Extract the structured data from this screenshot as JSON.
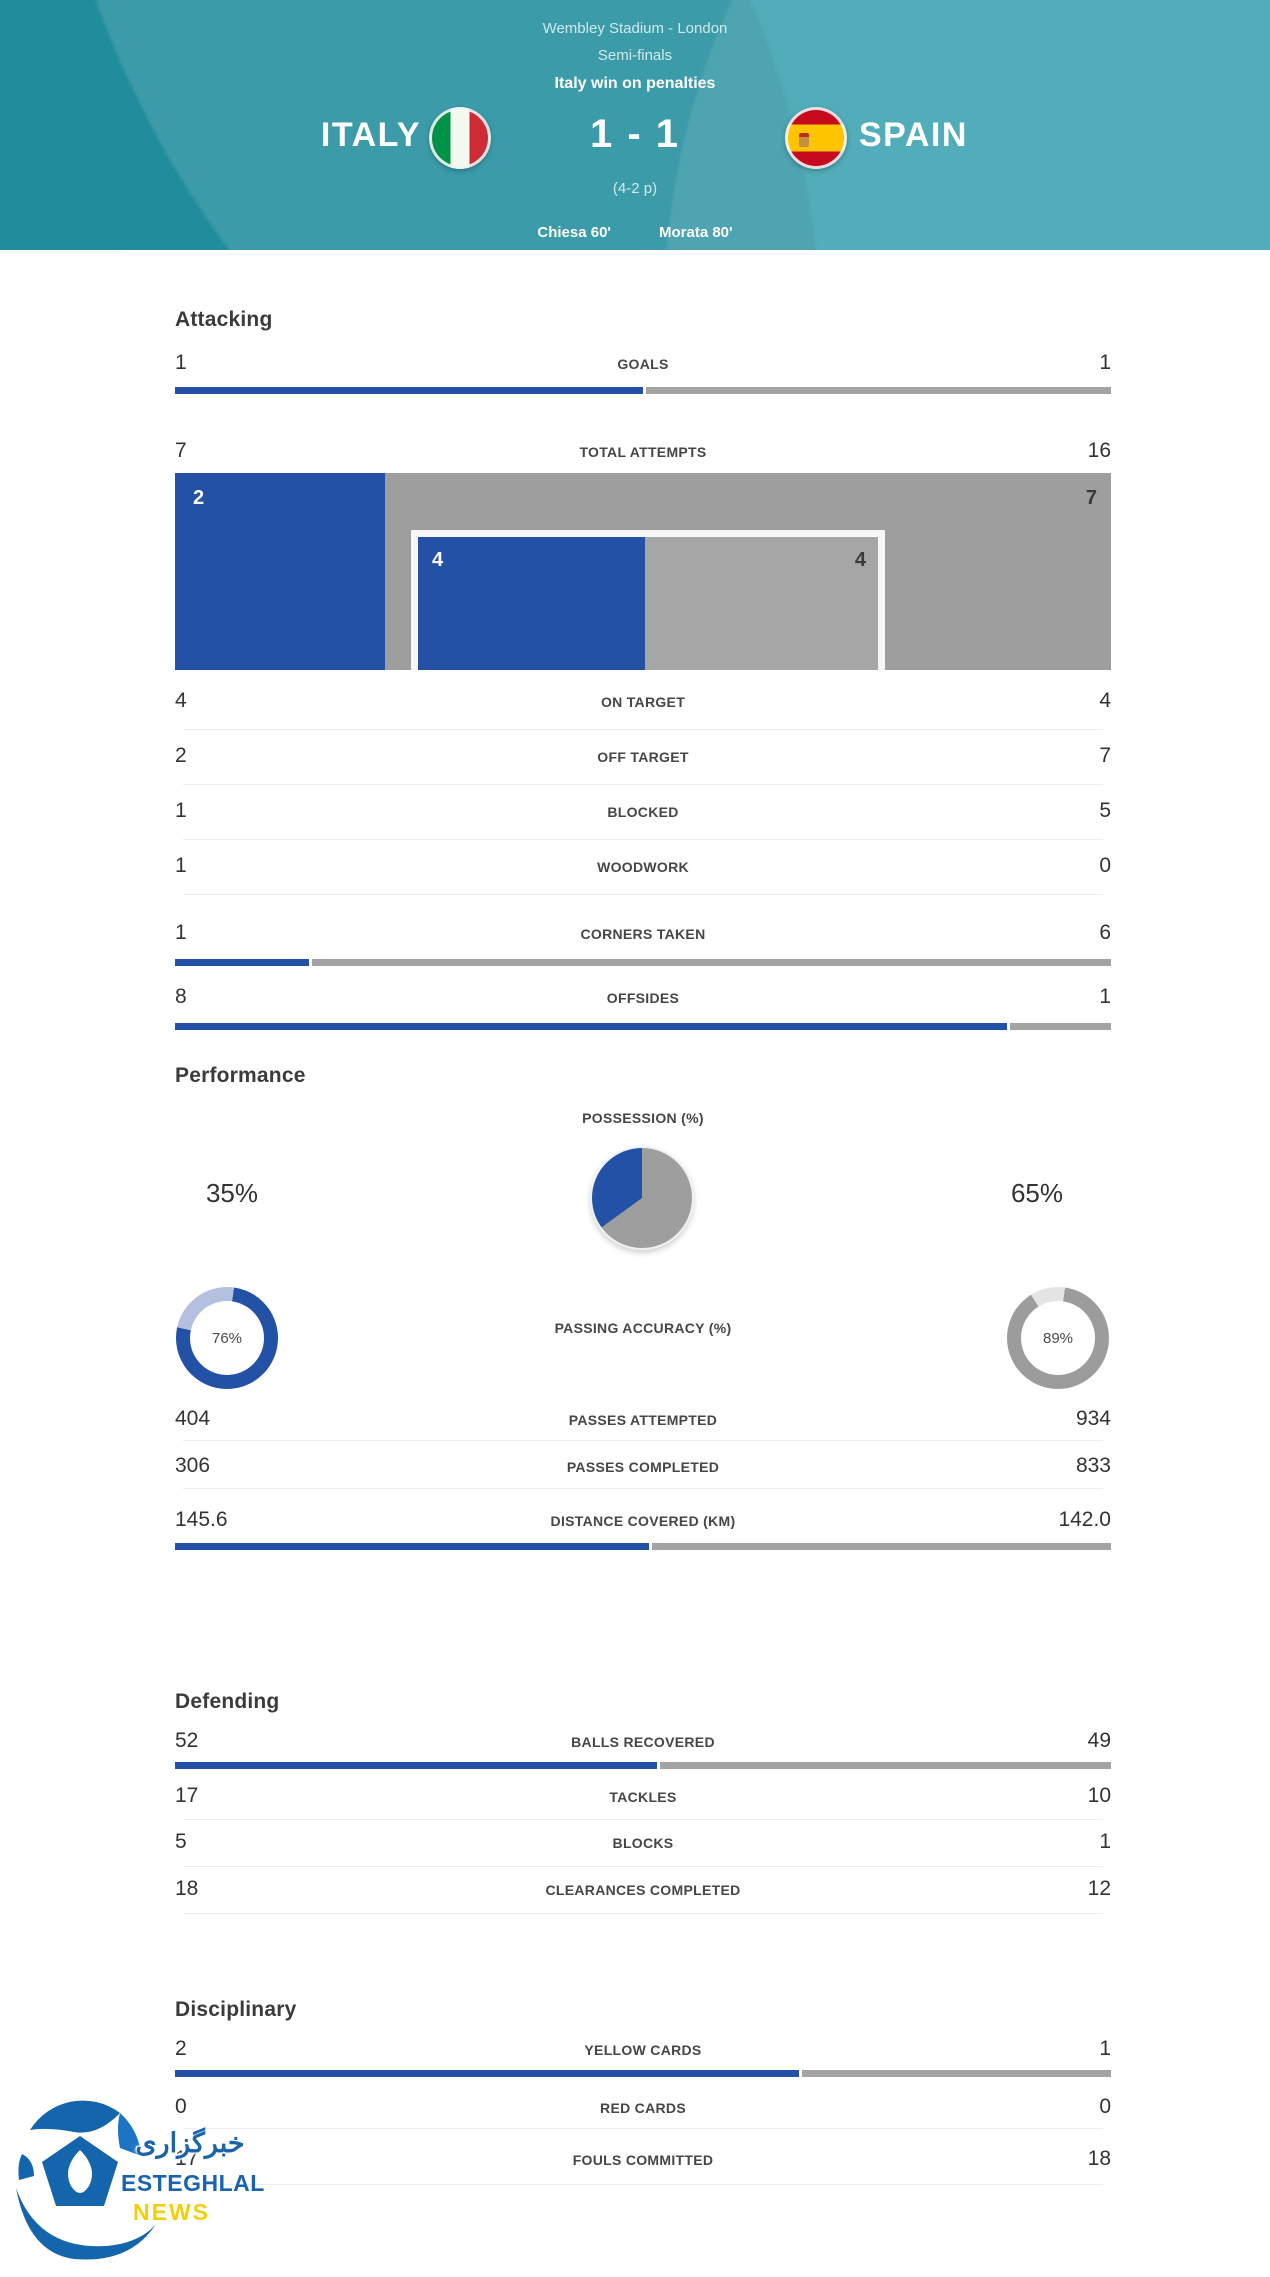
{
  "colors": {
    "home_blue": "#2351a5",
    "away_gray": "#9e9e9e",
    "header_teal": "#2398a7",
    "home_light": "#b3c0e0",
    "away_light": "#e4e4e4",
    "wm_blue": "#1c63ae",
    "wm_yellow": "#f3cf08"
  },
  "header": {
    "venue": "Wembley Stadium - London",
    "stage": "Semi-finals",
    "result_note": "Italy win on penalties",
    "home_team": "ITALY",
    "away_team": "SPAIN",
    "score": "1 - 1",
    "penalties": "(4-2 p)",
    "home_scorer": "Chiesa 60'",
    "away_scorer": "Morata 80'"
  },
  "attacking": {
    "title": "Attacking",
    "goals": {
      "label": "GOALS",
      "home": "1",
      "away": "1",
      "home_pct": 50
    },
    "attempts": {
      "label": "TOTAL ATTEMPTS",
      "home": "7",
      "away": "16",
      "outer_home": "2",
      "outer_away": "7",
      "inner_home": "4",
      "inner_away": "4",
      "outer_home_pct": 22.4,
      "inner_home_pct": 49.3
    },
    "on_target": {
      "label": "ON TARGET",
      "home": "4",
      "away": "4"
    },
    "off_target": {
      "label": "OFF TARGET",
      "home": "2",
      "away": "7"
    },
    "blocked": {
      "label": "BLOCKED",
      "home": "1",
      "away": "5"
    },
    "woodwork": {
      "label": "WOODWORK",
      "home": "1",
      "away": "0"
    },
    "corners": {
      "label": "CORNERS TAKEN",
      "home": "1",
      "away": "6",
      "home_pct": 14.3
    },
    "offsides": {
      "label": "OFFSIDES",
      "home": "8",
      "away": "1",
      "home_pct": 88.9
    }
  },
  "performance": {
    "title": "Performance",
    "possession": {
      "label": "POSSESSION (%)",
      "home": "35%",
      "away": "65%"
    },
    "passing": {
      "label": "PASSING ACCURACY (%)",
      "home": "76%",
      "away": "89%"
    },
    "passes_attempted": {
      "label": "PASSES ATTEMPTED",
      "home": "404",
      "away": "934"
    },
    "passes_completed": {
      "label": "PASSES COMPLETED",
      "home": "306",
      "away": "833"
    },
    "distance": {
      "label": "DISTANCE COVERED (KM)",
      "home": "145.6",
      "away": "142.0",
      "home_pct": 50.6
    }
  },
  "defending": {
    "title": "Defending",
    "balls_recovered": {
      "label": "BALLS RECOVERED",
      "home": "52",
      "away": "49",
      "home_pct": 51.5
    },
    "tackles": {
      "label": "TACKLES",
      "home": "17",
      "away": "10"
    },
    "blocks": {
      "label": "BLOCKS",
      "home": "5",
      "away": "1"
    },
    "clearances": {
      "label": "CLEARANCES COMPLETED",
      "home": "18",
      "away": "12"
    }
  },
  "disciplinary": {
    "title": "Disciplinary",
    "yellow_cards": {
      "label": "YELLOW CARDS",
      "home": "2",
      "away": "1",
      "home_pct": 66.7
    },
    "red_cards": {
      "label": "RED CARDS",
      "home": "0",
      "away": "0"
    },
    "fouls": {
      "label": "FOULS COMMITTED",
      "home": "17",
      "away": "18"
    }
  },
  "watermark": {
    "farsi": "خبرگزاری",
    "name": "ESTEGHLAL",
    "sub": "NEWS"
  },
  "chart_data": [
    {
      "type": "pie",
      "title": "POSSESSION (%)",
      "labels": [
        "Italy",
        "Spain"
      ],
      "values": [
        35,
        65
      ],
      "colors": [
        "#2351a5",
        "#9e9e9e"
      ]
    },
    {
      "type": "pie",
      "title": "PASSING ACCURACY (%) Italy donut",
      "labels": [
        "accurate",
        "inaccurate"
      ],
      "values": [
        76,
        24
      ]
    },
    {
      "type": "pie",
      "title": "PASSING ACCURACY (%) Spain donut",
      "labels": [
        "accurate",
        "inaccurate"
      ],
      "values": [
        89,
        11
      ]
    },
    {
      "type": "table",
      "title": "Italy 1 - 1 Spain (4-2 p) match statistics",
      "columns": [
        "stat",
        "Italy",
        "Spain"
      ],
      "rows": [
        [
          "GOALS",
          1,
          1
        ],
        [
          "TOTAL ATTEMPTS",
          7,
          16
        ],
        [
          "ON TARGET",
          4,
          4
        ],
        [
          "OFF TARGET",
          2,
          7
        ],
        [
          "BLOCKED",
          1,
          5
        ],
        [
          "WOODWORK",
          1,
          0
        ],
        [
          "CORNERS TAKEN",
          1,
          6
        ],
        [
          "OFFSIDES",
          8,
          1
        ],
        [
          "POSSESSION (%)",
          35,
          65
        ],
        [
          "PASSING ACCURACY (%)",
          76,
          89
        ],
        [
          "PASSES ATTEMPTED",
          404,
          934
        ],
        [
          "PASSES COMPLETED",
          306,
          833
        ],
        [
          "DISTANCE COVERED (KM)",
          145.6,
          142.0
        ],
        [
          "BALLS RECOVERED",
          52,
          49
        ],
        [
          "TACKLES",
          17,
          10
        ],
        [
          "BLOCKS",
          5,
          1
        ],
        [
          "CLEARANCES COMPLETED",
          18,
          12
        ],
        [
          "YELLOW CARDS",
          2,
          1
        ],
        [
          "RED CARDS",
          0,
          0
        ],
        [
          "FOULS COMMITTED",
          17,
          18
        ]
      ]
    }
  ]
}
